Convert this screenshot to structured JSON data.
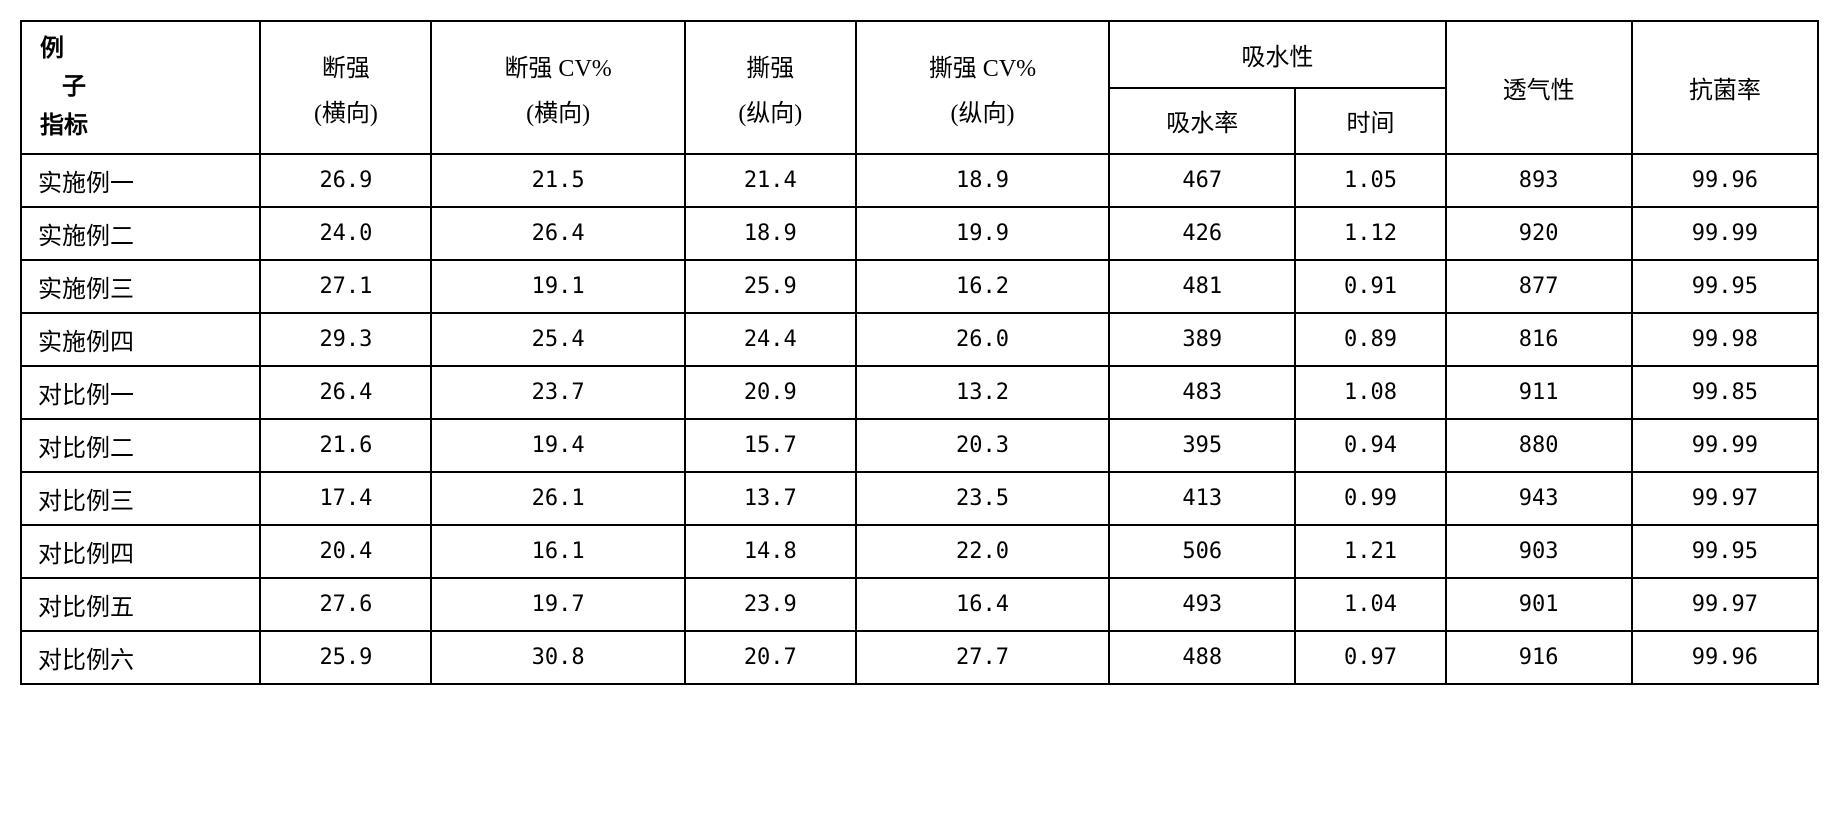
{
  "header": {
    "corner_top": "例",
    "corner_mid": "子",
    "corner_bot": "指标",
    "col1": "断强",
    "col1_sub": "(横向)",
    "col2": "断强 CV%",
    "col2_sub": "(横向)",
    "col3": "撕强",
    "col3_sub": "(纵向)",
    "col4": "撕强 CV%",
    "col4_sub": "(纵向)",
    "col5_group": "吸水性",
    "col5a": "吸水率",
    "col5b": "时间",
    "col6": "透气性",
    "col7": "抗菌率"
  },
  "rows": [
    {
      "label": "实施例一",
      "c1": "26.9",
      "c2": "21.5",
      "c3": "21.4",
      "c4": "18.9",
      "c5a": "467",
      "c5b": "1.05",
      "c6": "893",
      "c7": "99.96"
    },
    {
      "label": "实施例二",
      "c1": "24.0",
      "c2": "26.4",
      "c3": "18.9",
      "c4": "19.9",
      "c5a": "426",
      "c5b": "1.12",
      "c6": "920",
      "c7": "99.99"
    },
    {
      "label": "实施例三",
      "c1": "27.1",
      "c2": "19.1",
      "c3": "25.9",
      "c4": "16.2",
      "c5a": "481",
      "c5b": "0.91",
      "c6": "877",
      "c7": "99.95"
    },
    {
      "label": "实施例四",
      "c1": "29.3",
      "c2": "25.4",
      "c3": "24.4",
      "c4": "26.0",
      "c5a": "389",
      "c5b": "0.89",
      "c6": "816",
      "c7": "99.98"
    },
    {
      "label": "对比例一",
      "c1": "26.4",
      "c2": "23.7",
      "c3": "20.9",
      "c4": "13.2",
      "c5a": "483",
      "c5b": "1.08",
      "c6": "911",
      "c7": "99.85"
    },
    {
      "label": "对比例二",
      "c1": "21.6",
      "c2": "19.4",
      "c3": "15.7",
      "c4": "20.3",
      "c5a": "395",
      "c5b": "0.94",
      "c6": "880",
      "c7": "99.99"
    },
    {
      "label": "对比例三",
      "c1": "17.4",
      "c2": "26.1",
      "c3": "13.7",
      "c4": "23.5",
      "c5a": "413",
      "c5b": "0.99",
      "c6": "943",
      "c7": "99.97"
    },
    {
      "label": "对比例四",
      "c1": "20.4",
      "c2": "16.1",
      "c3": "14.8",
      "c4": "22.0",
      "c5a": "506",
      "c5b": "1.21",
      "c6": "903",
      "c7": "99.95"
    },
    {
      "label": "对比例五",
      "c1": "27.6",
      "c2": "19.7",
      "c3": "23.9",
      "c4": "16.4",
      "c5a": "493",
      "c5b": "1.04",
      "c6": "901",
      "c7": "99.97"
    },
    {
      "label": "对比例六",
      "c1": "25.9",
      "c2": "30.8",
      "c3": "20.7",
      "c4": "27.7",
      "c5a": "488",
      "c5b": "0.97",
      "c6": "916",
      "c7": "99.96"
    }
  ],
  "style": {
    "border_color": "#000000",
    "bg_color": "#ffffff",
    "header_font": "KaiTi",
    "data_font": "SimSun",
    "base_fontsize": 22
  }
}
